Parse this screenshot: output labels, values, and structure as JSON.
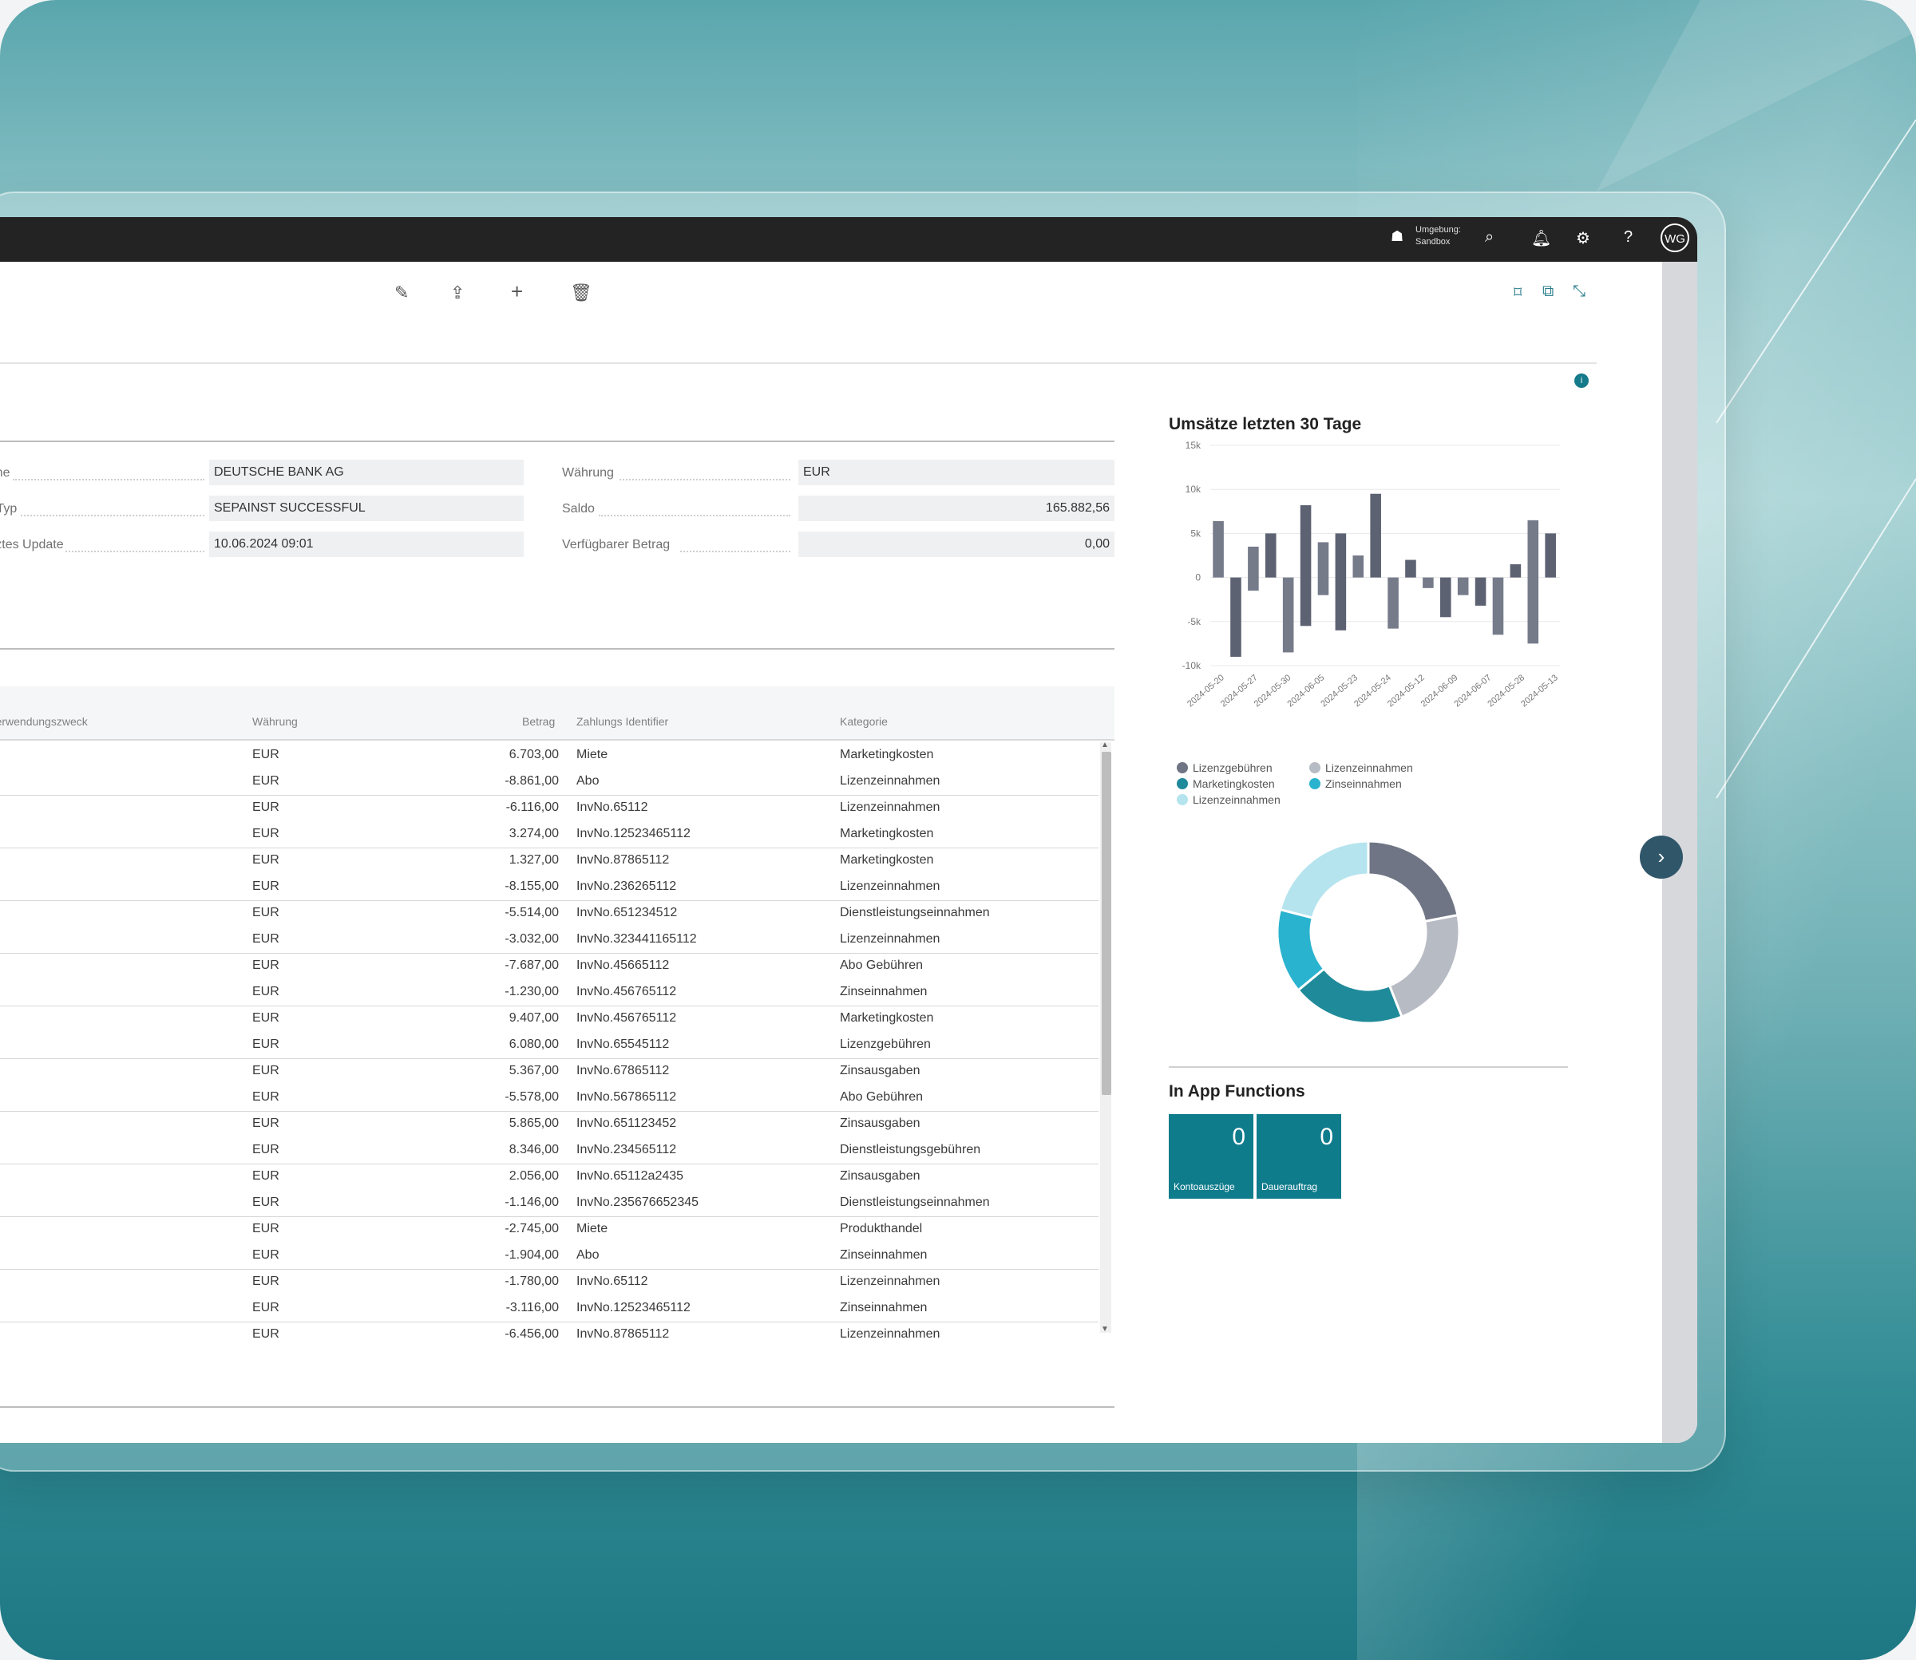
{
  "topbar": {
    "environment_label": "Umgebung:",
    "environment_value": "Sandbox",
    "avatar_initials": "WG"
  },
  "fields": [
    {
      "label": "Bankname",
      "value": "DEUTSCHE BANK AG"
    },
    {
      "label": "Status Typ",
      "value": "SEPAINST SUCCESSFUL"
    },
    {
      "label": "Letztes Update",
      "value": "10.06.2024 09:01"
    },
    {
      "label": "Währung",
      "value": "EUR"
    },
    {
      "label": "Saldo",
      "value": "165.882,56"
    },
    {
      "label": "Verfügbarer Betrag",
      "value": "0,00"
    }
  ],
  "table": {
    "headers": {
      "purpose": "Verwendungszweck",
      "currency": "Währung",
      "amount": "Betrag",
      "payment_id": "Zahlungs Identifier",
      "category": "Kategorie"
    },
    "rows": [
      {
        "currency": "EUR",
        "amount": "6.703,00",
        "payment_id": "Miete",
        "category": "Marketingkosten"
      },
      {
        "currency": "EUR",
        "amount": "-8.861,00",
        "payment_id": "Abo",
        "category": "Lizenzeinnahmen"
      },
      {
        "currency": "EUR",
        "amount": "-6.116,00",
        "payment_id": "InvNo.65112",
        "category": "Lizenzeinnahmen"
      },
      {
        "currency": "EUR",
        "amount": "3.274,00",
        "payment_id": "InvNo.12523465112",
        "category": "Marketingkosten"
      },
      {
        "currency": "EUR",
        "amount": "1.327,00",
        "payment_id": "InvNo.87865112",
        "category": "Marketingkosten"
      },
      {
        "currency": "EUR",
        "amount": "-8.155,00",
        "payment_id": "InvNo.236265112",
        "category": "Lizenzeinnahmen"
      },
      {
        "currency": "EUR",
        "amount": "-5.514,00",
        "payment_id": "InvNo.651234512",
        "category": "Dienstleistungseinnahmen"
      },
      {
        "currency": "EUR",
        "amount": "-3.032,00",
        "payment_id": "InvNo.323441165112",
        "category": "Lizenzeinnahmen"
      },
      {
        "currency": "EUR",
        "amount": "-7.687,00",
        "payment_id": "InvNo.45665112",
        "category": "Abo Gebühren"
      },
      {
        "currency": "EUR",
        "amount": "-1.230,00",
        "payment_id": "InvNo.456765112",
        "category": "Zinseinnahmen"
      },
      {
        "currency": "EUR",
        "amount": "9.407,00",
        "payment_id": "InvNo.456765112",
        "category": "Marketingkosten"
      },
      {
        "currency": "EUR",
        "amount": "6.080,00",
        "payment_id": "InvNo.65545112",
        "category": "Lizenzgebühren"
      },
      {
        "currency": "EUR",
        "amount": "5.367,00",
        "payment_id": "InvNo.67865112",
        "category": "Zinsausgaben"
      },
      {
        "currency": "EUR",
        "amount": "-5.578,00",
        "payment_id": "InvNo.567865112",
        "category": "Abo Gebühren"
      },
      {
        "currency": "EUR",
        "amount": "5.865,00",
        "payment_id": "InvNo.651123452",
        "category": "Zinsausgaben"
      },
      {
        "currency": "EUR",
        "amount": "8.346,00",
        "payment_id": "InvNo.234565112",
        "category": "Dienstleistungsgebühren"
      },
      {
        "currency": "EUR",
        "amount": "2.056,00",
        "payment_id": "InvNo.65112a2435",
        "category": "Zinsausgaben"
      },
      {
        "currency": "EUR",
        "amount": "-1.146,00",
        "payment_id": "InvNo.235676652345",
        "category": "Dienstleistungseinnahmen"
      },
      {
        "currency": "EUR",
        "amount": "-2.745,00",
        "payment_id": "Miete",
        "category": "Produkthandel"
      },
      {
        "currency": "EUR",
        "amount": "-1.904,00",
        "payment_id": "Abo",
        "category": "Zinseinnahmen"
      },
      {
        "currency": "EUR",
        "amount": "-1.780,00",
        "payment_id": "InvNo.65112",
        "category": "Lizenzeinnahmen"
      },
      {
        "currency": "EUR",
        "amount": "-3.116,00",
        "payment_id": "InvNo.12523465112",
        "category": "Zinseinnahmen"
      },
      {
        "currency": "EUR",
        "amount": "-6.456,00",
        "payment_id": "InvNo.87865112",
        "category": "Lizenzeinnahmen"
      }
    ]
  },
  "chart_section": {
    "title": "Umsätze letzten 30 Tage"
  },
  "chart_data": [
    {
      "type": "bar",
      "title": "Umsätze letzten 30 Tage",
      "ylim": [
        -10000,
        15000
      ],
      "y_ticks": [
        "15k",
        "10k",
        "5k",
        "0",
        "-5k",
        "-10k"
      ],
      "x_tick_labels": [
        "2024-05-20",
        "2024-05-27",
        "2024-05-30",
        "2024-06-05",
        "2024-05-23",
        "2024-05-24",
        "2024-05-12",
        "2024-06-09",
        "2024-06-07",
        "2024-05-28",
        "2024-05-13"
      ],
      "bars": [
        {
          "low": 0,
          "high": 6400
        },
        {
          "low": -9000,
          "high": 0
        },
        {
          "low": -1500,
          "high": 3500
        },
        {
          "low": 0,
          "high": 5000
        },
        {
          "low": -8500,
          "high": 0
        },
        {
          "low": -5500,
          "high": 8200
        },
        {
          "low": -2000,
          "high": 4000
        },
        {
          "low": -6000,
          "high": 5000
        },
        {
          "low": 0,
          "high": 2500
        },
        {
          "low": 0,
          "high": 9500
        },
        {
          "low": -5800,
          "high": 0
        },
        {
          "low": 0,
          "high": 2000
        },
        {
          "low": -1200,
          "high": 0
        },
        {
          "low": -4500,
          "high": 0
        },
        {
          "low": -2000,
          "high": 0
        },
        {
          "low": -3200,
          "high": 0
        },
        {
          "low": -6500,
          "high": 0
        },
        {
          "low": 0,
          "high": 1500
        },
        {
          "low": -7500,
          "high": 6500
        },
        {
          "low": 0,
          "high": 5000
        }
      ],
      "bar_color": "#6b7080"
    },
    {
      "type": "pie",
      "series": [
        {
          "name": "Lizenzgebühren",
          "value": 22,
          "color": "#6f7585"
        },
        {
          "name": "Lizenzeinnahmen",
          "value": 22,
          "color": "#b7bbc4"
        },
        {
          "name": "Marketingkosten",
          "value": 20,
          "color": "#1f8a9a"
        },
        {
          "name": "Zinseinnahmen",
          "value": 15,
          "color": "#2ab3cf"
        },
        {
          "name": "Lizenzeinnahmen",
          "value": 21,
          "color": "#b5e4ee"
        }
      ]
    }
  ],
  "apps": {
    "title": "In App Functions",
    "tiles": [
      {
        "value": "0",
        "label": "Kontoauszüge"
      },
      {
        "value": "0",
        "label": "Dauerauftrag"
      }
    ]
  }
}
